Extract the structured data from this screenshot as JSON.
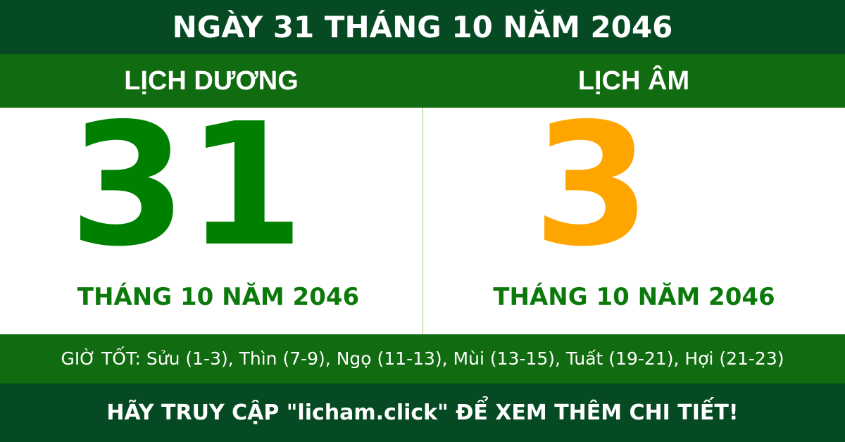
{
  "title": "NGÀY 31 THÁNG 10 NĂM 2046",
  "solar": {
    "label": "LỊCH DƯƠNG",
    "day": "31",
    "month_year": "THÁNG 10 NĂM 2046"
  },
  "lunar": {
    "label": "LỊCH ÂM",
    "day": "3",
    "month_year": "THÁNG 10 NĂM 2046"
  },
  "good_hours": "GIỜ TỐT: Sửu (1-3), Thìn (7-9), Ngọ (11-13), Mùi (13-15), Tuất (19-21), Hợi (21-23)",
  "footer": "HÃY TRUY CẬP \"licham.click\" ĐỂ XEM THÊM CHI TIẾT!",
  "colors": {
    "header": "#054a23",
    "band": "#116b10",
    "solar_day": "#008000",
    "lunar_day": "#ffa500"
  }
}
